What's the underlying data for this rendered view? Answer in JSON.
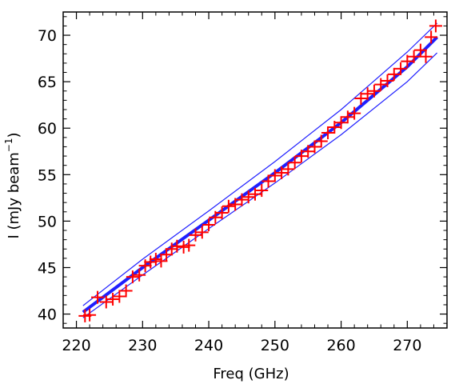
{
  "chart_data": {
    "type": "scatter",
    "xlabel": "Freq (GHz)",
    "ylabel_main": "I (mJy beam",
    "ylabel_sup": "−1",
    "ylabel_close": ")",
    "xlim": [
      218,
      276
    ],
    "ylim": [
      38.5,
      72.5
    ],
    "xticks": [
      220,
      230,
      240,
      250,
      260,
      270
    ],
    "yticks": [
      40,
      45,
      50,
      55,
      60,
      65,
      70
    ],
    "grid": false,
    "colors": {
      "points": "#ff0000",
      "fit": "#1f1fff",
      "axes": "#000000"
    },
    "fit": {
      "x": [
        221,
        230,
        240,
        250,
        260,
        270,
        274.5
      ],
      "y": [
        40.2,
        45.0,
        50.1,
        55.2,
        60.6,
        66.6,
        69.8
      ]
    },
    "upper_band": {
      "x": [
        221,
        230,
        240,
        250,
        260,
        270,
        274.5
      ],
      "y": [
        40.9,
        45.9,
        51.1,
        56.4,
        62.0,
        68.2,
        71.3
      ]
    },
    "lower_band": {
      "x": [
        221,
        230,
        240,
        250,
        260,
        270,
        274.5
      ],
      "y": [
        39.6,
        44.2,
        49.2,
        54.1,
        59.3,
        65.0,
        68.1
      ]
    },
    "points": {
      "x": [
        221.3,
        222.0,
        223.2,
        224.5,
        225.5,
        226.5,
        227.5,
        228.5,
        229.5,
        230.4,
        231.2,
        232.0,
        232.8,
        233.6,
        234.4,
        235.2,
        236.2,
        237.0,
        238.0,
        239.0,
        240.0,
        241.0,
        242.0,
        243.0,
        244.0,
        245.0,
        246.0,
        247.0,
        248.0,
        249.0,
        250.0,
        251.0,
        252.0,
        253.0,
        254.0,
        255.0,
        256.0,
        257.0,
        258.0,
        259.0,
        260.0,
        261.0,
        262.0,
        263.0,
        264.0,
        265.0,
        266.0,
        267.0,
        268.0,
        269.0,
        270.0,
        271.0,
        272.0,
        272.8,
        273.6,
        274.3
      ],
      "y": [
        39.8,
        39.9,
        41.8,
        41.3,
        41.6,
        41.9,
        42.5,
        44.0,
        44.2,
        45.2,
        45.6,
        45.9,
        45.7,
        46.4,
        47.0,
        47.3,
        47.2,
        47.4,
        48.5,
        48.8,
        49.6,
        50.4,
        50.9,
        51.6,
        51.8,
        52.3,
        52.6,
        52.9,
        53.3,
        54.3,
        54.9,
        55.2,
        55.6,
        56.3,
        57.0,
        57.5,
        58.0,
        58.6,
        59.5,
        60.1,
        60.6,
        61.2,
        61.6,
        63.2,
        63.7,
        64.0,
        64.7,
        65.1,
        65.8,
        66.4,
        67.2,
        67.7,
        68.4,
        67.7,
        69.8,
        71.0
      ]
    }
  }
}
